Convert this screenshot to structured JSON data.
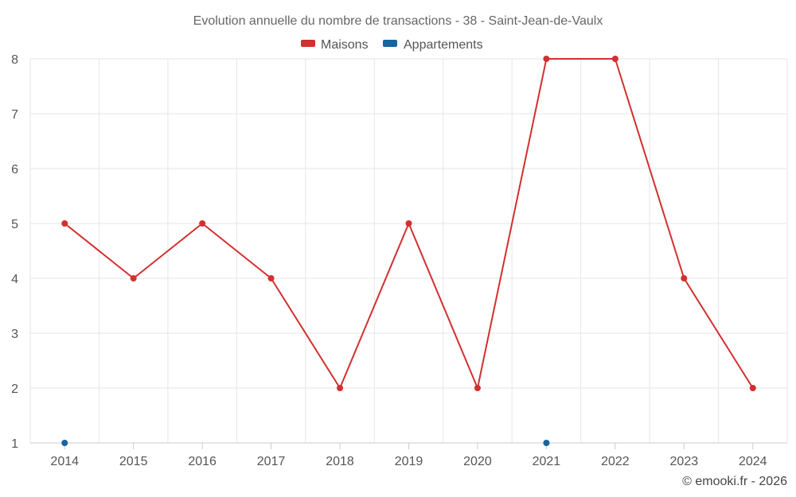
{
  "chart_data": {
    "type": "line",
    "title": "Evolution annuelle du nombre de transactions - 38 - Saint-Jean-de-Vaulx",
    "categories": [
      "2014",
      "2015",
      "2016",
      "2017",
      "2018",
      "2019",
      "2020",
      "2021",
      "2022",
      "2023",
      "2024"
    ],
    "series": [
      {
        "name": "Maisons",
        "color": "#d32f2f",
        "values": [
          5,
          4,
          5,
          4,
          2,
          5,
          2,
          8,
          8,
          4,
          2
        ]
      },
      {
        "name": "Appartements",
        "color": "#1565a0",
        "values": [
          1,
          null,
          null,
          null,
          null,
          null,
          null,
          1,
          null,
          null,
          null
        ]
      }
    ],
    "y_ticks": [
      "1",
      "2",
      "3",
      "4",
      "5",
      "6",
      "7",
      "8"
    ],
    "ylim": [
      1,
      8
    ],
    "grid": true,
    "legend_position": "top-center",
    "credit": "© emooki.fr - 2026"
  }
}
